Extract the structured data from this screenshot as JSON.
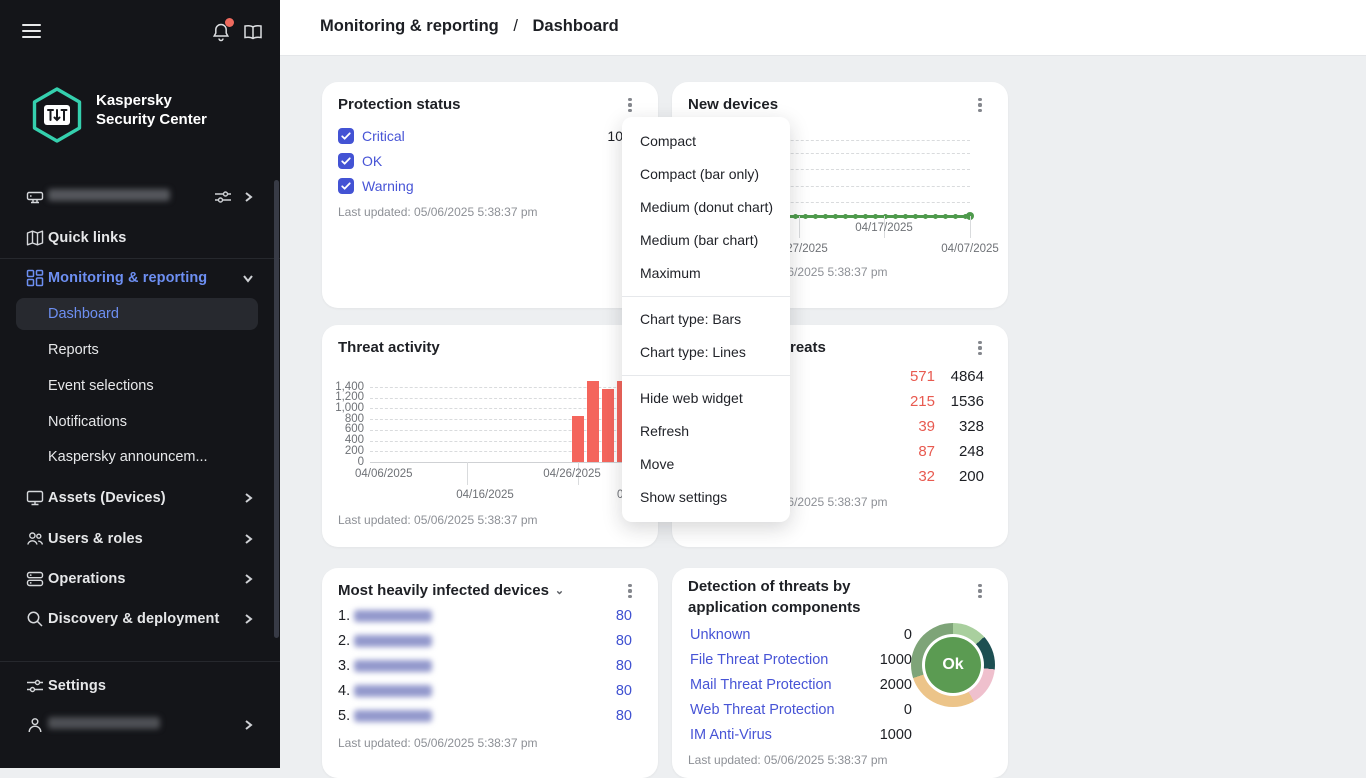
{
  "header": {
    "breadcrumb_1": "Monitoring & reporting",
    "breadcrumb_sep": "/",
    "breadcrumb_2": "Dashboard"
  },
  "sidebar": {
    "brand1": "Kaspersky",
    "brand2": "Security Center",
    "quick_links": "Quick links",
    "monitoring": "Monitoring & reporting",
    "dashboard": "Dashboard",
    "reports": "Reports",
    "event_selections": "Event selections",
    "notifications": "Notifications",
    "announcements": "Kaspersky announcem...",
    "assets": "Assets (Devices)",
    "users": "Users & roles",
    "operations": "Operations",
    "discovery": "Discovery & deployment",
    "settings": "Settings"
  },
  "context_menu": {
    "groups": [
      [
        "Compact",
        "Compact (bar only)",
        "Medium (donut chart)",
        "Medium (bar chart)",
        "Maximum"
      ],
      [
        "Chart type: Bars",
        "Chart type: Lines"
      ],
      [
        "Hide web widget",
        "Refresh",
        "Move",
        "Show settings"
      ]
    ]
  },
  "widgets": {
    "protection_status": {
      "title": "Protection status",
      "rows": [
        {
          "label": "Critical",
          "checked": true,
          "value_visible": "10"
        },
        {
          "label": "OK",
          "checked": true
        },
        {
          "label": "Warning",
          "checked": true
        }
      ],
      "last_updated": "Last updated: 05/06/2025 5:38:37 pm",
      "accent_color": "#4353d4"
    },
    "new_devices": {
      "title": "New devices",
      "last_updated": "Last updated: 05/06/2025 5:38:37 pm",
      "chart": {
        "type": "line",
        "line_color": "#4e9a4c",
        "flat_value": 0,
        "x_labels": [
          "04/27/2025",
          "04/17/2025",
          "04/07/2025"
        ],
        "grid": "dashed"
      }
    },
    "threat_activity": {
      "title": "Threat activity",
      "last_updated": "Last updated: 05/06/2025 5:38:37 pm",
      "chart": {
        "type": "bar",
        "bar_color": "#f4655c",
        "y_ticks": [
          "0",
          "200",
          "400",
          "600",
          "800",
          "1,000",
          "1,200",
          "1,400"
        ],
        "y_tick_step": 200,
        "x_labels": [
          "04/06/2025",
          "04/16/2025",
          "04/26/2025",
          "05/06/2025"
        ],
        "values": [
          850,
          1520,
          1370,
          1520,
          1450
        ]
      }
    },
    "threats": {
      "title_visible": "reats",
      "rows": [
        {
          "red": "571",
          "black": "4864"
        },
        {
          "red": "215",
          "black": "1536"
        },
        {
          "red": "39",
          "black": "328"
        },
        {
          "red": "87",
          "black": "248"
        },
        {
          "red": "32",
          "black": "200"
        }
      ],
      "last_updated": "Last updated: 05/06/2025 5:38:37 pm",
      "red_color": "#e85a50"
    },
    "most_infected": {
      "title": "Most heavily infected devices",
      "rows": [
        {
          "rank": "1.",
          "value": "80"
        },
        {
          "rank": "2.",
          "value": "80"
        },
        {
          "rank": "3.",
          "value": "80"
        },
        {
          "rank": "4.",
          "value": "80"
        },
        {
          "rank": "5.",
          "value": "80"
        }
      ],
      "last_updated": "Last updated: 05/06/2025 5:38:37 pm"
    },
    "detection": {
      "title": "Detection of threats by application components",
      "rows": [
        {
          "label": "Unknown",
          "value": "0"
        },
        {
          "label": "File Threat Protection",
          "value": "1000"
        },
        {
          "label": "Mail Threat Protection",
          "value": "2000"
        },
        {
          "label": "Web Threat Protection",
          "value": "0"
        },
        {
          "label": "IM Anti-Virus",
          "value": "1000"
        }
      ],
      "donut": {
        "center_label": "Ok",
        "center_color": "#5b9b52",
        "segments": [
          {
            "color": "#a9cf9e",
            "to": 48
          },
          {
            "color": "#1d4f52",
            "to": 96
          },
          {
            "color": "#efc0cd",
            "to": 150
          },
          {
            "color": "#ecc489",
            "to": 252
          },
          {
            "color": "#7ea478",
            "to": 360
          }
        ]
      },
      "last_updated": "Last updated: 05/06/2025 5:38:37 pm"
    }
  }
}
